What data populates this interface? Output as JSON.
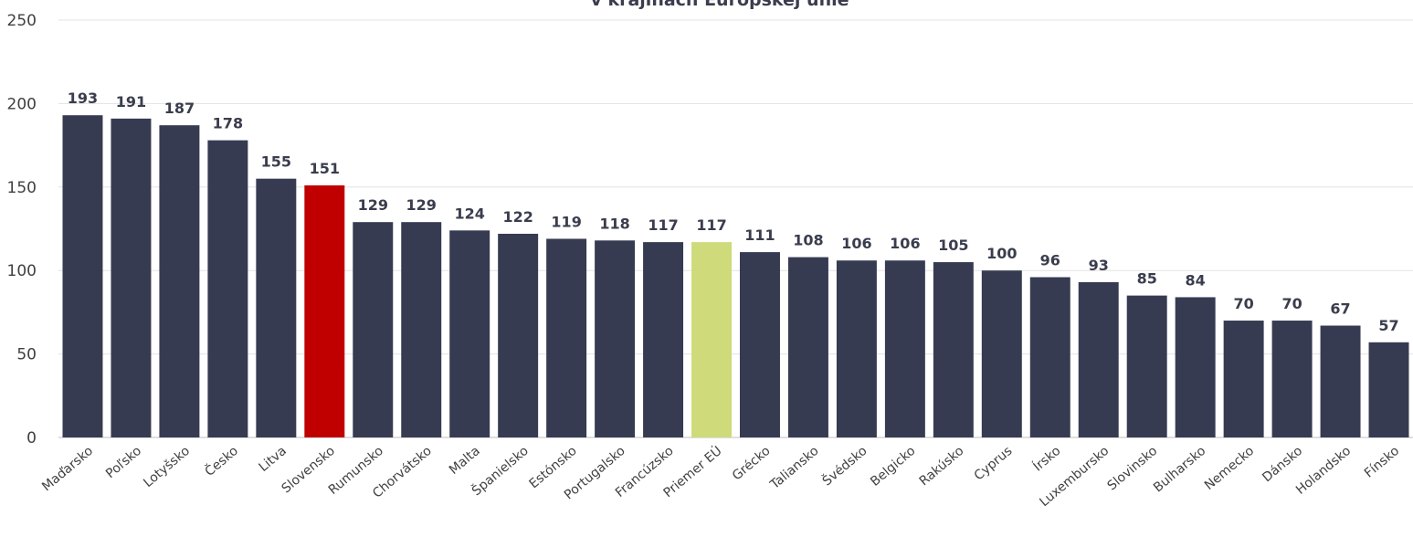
{
  "chart_data": {
    "type": "bar",
    "title": "v krajinách Európskej únie",
    "xlabel": "",
    "ylabel": "",
    "ylim": [
      0,
      250
    ],
    "yticks": [
      0,
      50,
      100,
      150,
      200,
      250
    ],
    "grid": true,
    "legend": "none",
    "categories": [
      "Maďarsko",
      "Poľsko",
      "Lotyšsko",
      "Česko",
      "Litva",
      "Slovensko",
      "Rumunsko",
      "Chorvátsko",
      "Malta",
      "Španielsko",
      "Estónsko",
      "Portugalsko",
      "Francúzsko",
      "Priemer EÚ",
      "Grécko",
      "Taliansko",
      "Švédsko",
      "Belgicko",
      "Rakúsko",
      "Cyprus",
      "Írsko",
      "Luxembursko",
      "Slovinsko",
      "Bulharsko",
      "Nemecko",
      "Dánsko",
      "Holandsko",
      "Fínsko"
    ],
    "values": [
      193,
      191,
      187,
      178,
      155,
      151,
      129,
      129,
      124,
      122,
      119,
      118,
      117,
      117,
      111,
      108,
      106,
      106,
      105,
      100,
      96,
      93,
      85,
      84,
      70,
      70,
      67,
      57
    ],
    "colors": {
      "default": "#363b52",
      "Slovensko": "#c00000",
      "Priemer EÚ": "#cfda7a"
    }
  }
}
